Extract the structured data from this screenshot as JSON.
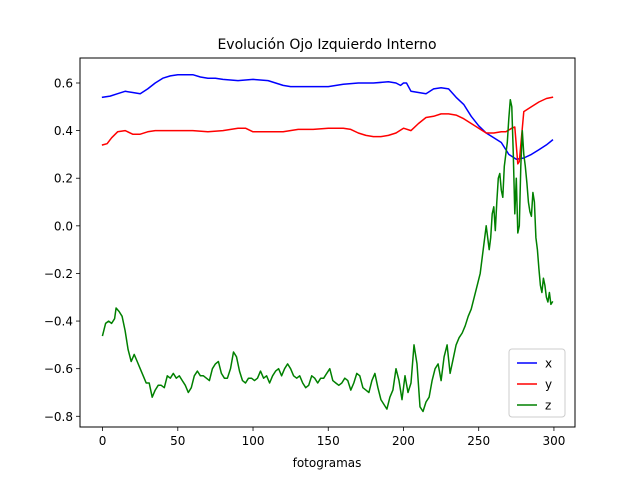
{
  "chart_data": {
    "type": "line",
    "title": "Evolución Ojo Izquierdo Interno",
    "xlabel": "fotogramas",
    "ylabel": "",
    "xlim": [
      -15,
      314
    ],
    "ylim": [
      -0.845,
      0.705
    ],
    "xticks": [
      0,
      50,
      100,
      150,
      200,
      250,
      300
    ],
    "yticks": [
      -0.8,
      -0.6,
      -0.4,
      -0.2,
      0.0,
      0.2,
      0.4,
      0.6
    ],
    "ytick_labels": [
      "−0.8",
      "−0.6",
      "−0.4",
      "−0.2",
      "0.0",
      "0.2",
      "0.4",
      "0.6"
    ],
    "grid": false,
    "legend_position": "lower-right",
    "series": [
      {
        "name": "x",
        "color": "#0000ff",
        "x": [
          0,
          5,
          10,
          15,
          20,
          25,
          30,
          35,
          40,
          45,
          50,
          55,
          60,
          65,
          70,
          75,
          80,
          90,
          100,
          110,
          115,
          120,
          125,
          130,
          140,
          150,
          160,
          170,
          180,
          190,
          195,
          198,
          200,
          202,
          205,
          210,
          215,
          220,
          225,
          230,
          235,
          240,
          245,
          250,
          255,
          260,
          265,
          270,
          275,
          280,
          285,
          290,
          295,
          299
        ],
        "y": [
          0.54,
          0.545,
          0.555,
          0.565,
          0.56,
          0.555,
          0.575,
          0.6,
          0.62,
          0.63,
          0.635,
          0.635,
          0.635,
          0.625,
          0.62,
          0.62,
          0.615,
          0.61,
          0.615,
          0.61,
          0.6,
          0.59,
          0.585,
          0.585,
          0.585,
          0.585,
          0.595,
          0.6,
          0.6,
          0.605,
          0.6,
          0.59,
          0.6,
          0.6,
          0.565,
          0.56,
          0.555,
          0.575,
          0.58,
          0.575,
          0.54,
          0.51,
          0.46,
          0.42,
          0.39,
          0.37,
          0.35,
          0.3,
          0.28,
          0.285,
          0.3,
          0.32,
          0.34,
          0.36
        ]
      },
      {
        "name": "y",
        "color": "#ff0000",
        "x": [
          0,
          3,
          6,
          10,
          15,
          20,
          25,
          30,
          35,
          40,
          50,
          60,
          70,
          80,
          90,
          95,
          100,
          110,
          120,
          130,
          140,
          150,
          160,
          165,
          170,
          175,
          180,
          185,
          190,
          195,
          200,
          205,
          210,
          215,
          220,
          225,
          230,
          235,
          240,
          245,
          250,
          255,
          260,
          265,
          268,
          272,
          274,
          276,
          277,
          280,
          285,
          290,
          295,
          299
        ],
        "y": [
          0.34,
          0.345,
          0.37,
          0.395,
          0.4,
          0.385,
          0.385,
          0.395,
          0.4,
          0.4,
          0.4,
          0.4,
          0.395,
          0.4,
          0.41,
          0.41,
          0.395,
          0.395,
          0.395,
          0.405,
          0.405,
          0.41,
          0.41,
          0.405,
          0.39,
          0.38,
          0.375,
          0.375,
          0.38,
          0.39,
          0.41,
          0.4,
          0.43,
          0.455,
          0.46,
          0.47,
          0.47,
          0.465,
          0.45,
          0.43,
          0.41,
          0.39,
          0.39,
          0.395,
          0.395,
          0.41,
          0.415,
          0.26,
          0.27,
          0.48,
          0.5,
          0.52,
          0.535,
          0.54
        ]
      },
      {
        "name": "z",
        "color": "#008000",
        "x": [
          0,
          2,
          4,
          6,
          8,
          9,
          11,
          13,
          15,
          17,
          19,
          21,
          23,
          25,
          27,
          29,
          31,
          33,
          35,
          37,
          39,
          41,
          43,
          45,
          47,
          49,
          51,
          53,
          55,
          57,
          59,
          61,
          63,
          65,
          67,
          69,
          71,
          73,
          75,
          77,
          79,
          81,
          83,
          85,
          87,
          89,
          91,
          93,
          95,
          97,
          99,
          101,
          103,
          105,
          107,
          109,
          111,
          113,
          115,
          117,
          119,
          121,
          123,
          125,
          127,
          129,
          131,
          133,
          135,
          137,
          139,
          141,
          143,
          145,
          147,
          149,
          151,
          153,
          155,
          157,
          159,
          161,
          163,
          165,
          167,
          169,
          171,
          173,
          175,
          177,
          179,
          181,
          183,
          185,
          187,
          189,
          191,
          193,
          195,
          197,
          199,
          201,
          203,
          205,
          207,
          209,
          211,
          213,
          215,
          217,
          219,
          221,
          223,
          225,
          227,
          229,
          231,
          233,
          235,
          237,
          239,
          241,
          243,
          245,
          247,
          249,
          251,
          253,
          255,
          257,
          258,
          259,
          260,
          261,
          262,
          263,
          264,
          265,
          266,
          267,
          268,
          269,
          270,
          271,
          272,
          273,
          274,
          275,
          276,
          277,
          278,
          279,
          280,
          281,
          282,
          283,
          284,
          285,
          286,
          287,
          288,
          289,
          290,
          291,
          292,
          293,
          294,
          295,
          296,
          297,
          298,
          299
        ],
        "y": [
          -0.46,
          -0.41,
          -0.4,
          -0.41,
          -0.39,
          -0.345,
          -0.36,
          -0.38,
          -0.44,
          -0.52,
          -0.57,
          -0.54,
          -0.57,
          -0.6,
          -0.63,
          -0.66,
          -0.66,
          -0.72,
          -0.69,
          -0.67,
          -0.67,
          -0.68,
          -0.63,
          -0.64,
          -0.62,
          -0.64,
          -0.63,
          -0.65,
          -0.67,
          -0.7,
          -0.68,
          -0.63,
          -0.61,
          -0.63,
          -0.63,
          -0.64,
          -0.65,
          -0.6,
          -0.58,
          -0.57,
          -0.62,
          -0.64,
          -0.64,
          -0.6,
          -0.53,
          -0.55,
          -0.61,
          -0.65,
          -0.66,
          -0.64,
          -0.64,
          -0.65,
          -0.64,
          -0.61,
          -0.64,
          -0.63,
          -0.66,
          -0.63,
          -0.61,
          -0.6,
          -0.63,
          -0.6,
          -0.58,
          -0.6,
          -0.63,
          -0.64,
          -0.63,
          -0.66,
          -0.68,
          -0.67,
          -0.63,
          -0.64,
          -0.66,
          -0.64,
          -0.64,
          -0.62,
          -0.6,
          -0.65,
          -0.66,
          -0.67,
          -0.66,
          -0.64,
          -0.65,
          -0.69,
          -0.66,
          -0.62,
          -0.63,
          -0.68,
          -0.69,
          -0.7,
          -0.65,
          -0.62,
          -0.68,
          -0.73,
          -0.75,
          -0.77,
          -0.72,
          -0.69,
          -0.6,
          -0.65,
          -0.73,
          -0.63,
          -0.7,
          -0.66,
          -0.5,
          -0.58,
          -0.76,
          -0.78,
          -0.74,
          -0.72,
          -0.65,
          -0.6,
          -0.58,
          -0.65,
          -0.55,
          -0.5,
          -0.62,
          -0.56,
          -0.5,
          -0.47,
          -0.45,
          -0.42,
          -0.38,
          -0.35,
          -0.3,
          -0.25,
          -0.2,
          -0.1,
          0.0,
          -0.1,
          -0.05,
          0.05,
          0.08,
          -0.02,
          0.1,
          0.2,
          0.22,
          0.15,
          0.12,
          0.25,
          0.3,
          0.35,
          0.45,
          0.53,
          0.5,
          0.3,
          0.05,
          0.2,
          -0.03,
          0.0,
          0.25,
          0.4,
          0.3,
          0.25,
          0.18,
          0.1,
          0.06,
          0.04,
          0.14,
          0.1,
          -0.05,
          -0.1,
          -0.18,
          -0.25,
          -0.28,
          -0.22,
          -0.25,
          -0.3,
          -0.32,
          -0.28,
          -0.33,
          -0.32
        ]
      }
    ]
  }
}
